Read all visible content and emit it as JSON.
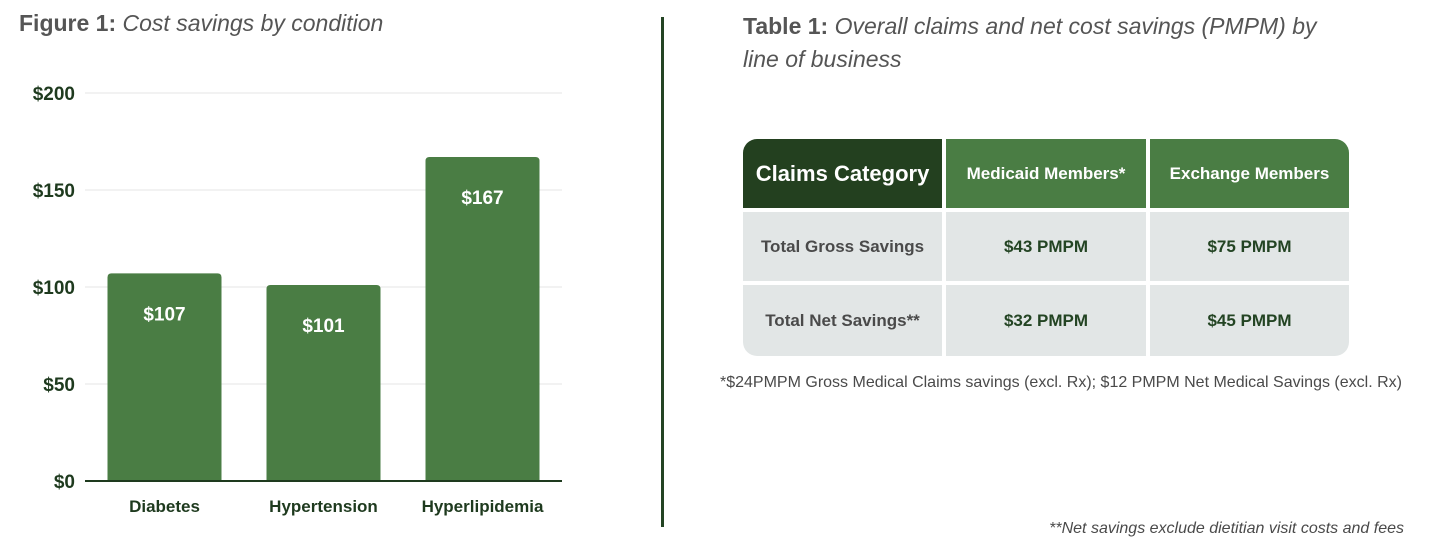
{
  "figure": {
    "label": "Figure 1:",
    "title": "Cost savings by condition"
  },
  "chart_data": {
    "type": "bar",
    "title": "Cost savings by condition",
    "categories": [
      "Diabetes",
      "Hypertension",
      "Hyperlipidemia"
    ],
    "values": [
      107,
      101,
      167
    ],
    "value_labels": [
      "$107",
      "$101",
      "$167"
    ],
    "y_ticks": [
      0,
      50,
      100,
      150,
      200
    ],
    "y_tick_labels": [
      "$0",
      "$50",
      "$100",
      "$150",
      "$200"
    ],
    "ylim": [
      0,
      200
    ],
    "xlabel": "",
    "ylabel": "",
    "grid": true,
    "bar_color": "#4a7d44",
    "axis_color": "#1e3a1e"
  },
  "table": {
    "label": "Table 1:",
    "title": "Overall claims and net cost savings (PMPM) by line of business",
    "headers": [
      "Claims Category",
      "Medicaid Members*",
      "Exchange Members"
    ],
    "rows": [
      [
        "Total Gross Savings",
        "$43 PMPM",
        "$75 PMPM"
      ],
      [
        "Total Net Savings**",
        "$32 PMPM",
        "$45 PMPM"
      ]
    ],
    "colors": {
      "header_dark": "#23401f",
      "header_green": "#4a7d44",
      "body_bg": "#e2e6e6"
    }
  },
  "footnotes": {
    "medicaid": "*$24PMPM Gross Medical Claims savings (excl. Rx); $12 PMPM Net Medical Savings (excl. Rx)",
    "net": "**Net savings exclude dietitian visit costs and fees"
  }
}
